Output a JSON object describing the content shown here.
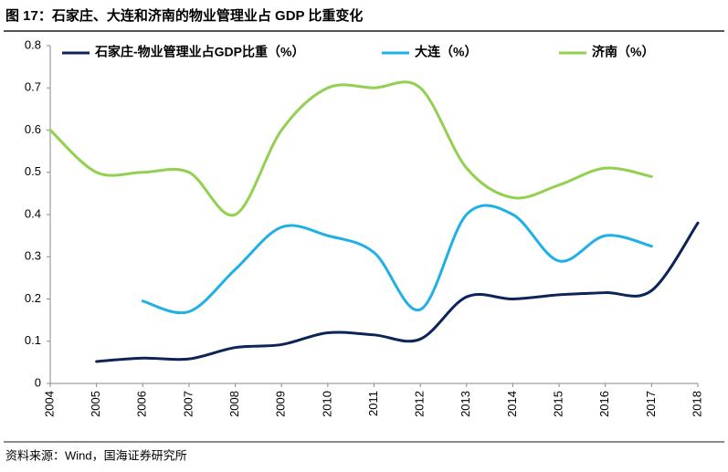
{
  "chart_data": {
    "type": "line",
    "title": "图 17：石家庄、大连和济南的物业管理业占 GDP 比重变化",
    "source": "资料来源：Wind，国海证券研究所",
    "x": [
      2004,
      2005,
      2006,
      2007,
      2008,
      2009,
      2010,
      2011,
      2012,
      2013,
      2014,
      2015,
      2016,
      2017,
      2018
    ],
    "xlim": [
      2004,
      2018
    ],
    "xticks": [
      2004,
      2005,
      2006,
      2007,
      2008,
      2009,
      2010,
      2011,
      2012,
      2013,
      2014,
      2015,
      2016,
      2017,
      2018
    ],
    "ylim": [
      0,
      0.8
    ],
    "yticks": [
      0,
      0.1,
      0.2,
      0.3,
      0.4,
      0.5,
      0.6,
      0.7,
      0.8
    ],
    "grid": false,
    "smooth": true,
    "series": [
      {
        "name": "石家庄-物业管理业占GDP比重（%）",
        "color": "#0c2457",
        "values": [
          null,
          0.052,
          0.06,
          0.058,
          0.085,
          0.092,
          0.12,
          0.115,
          0.105,
          0.205,
          0.2,
          0.21,
          0.215,
          0.22,
          0.38
        ]
      },
      {
        "name": "大连（%）",
        "color": "#1fb0e6",
        "values": [
          null,
          null,
          0.195,
          0.17,
          0.27,
          0.37,
          0.35,
          0.31,
          0.175,
          0.4,
          0.4,
          0.29,
          0.35,
          0.325,
          null
        ]
      },
      {
        "name": "济南（%）",
        "color": "#92d050",
        "values": [
          0.6,
          0.5,
          0.5,
          0.5,
          0.4,
          0.6,
          0.7,
          0.7,
          0.7,
          0.51,
          0.44,
          0.47,
          0.51,
          0.49,
          null
        ]
      }
    ]
  }
}
